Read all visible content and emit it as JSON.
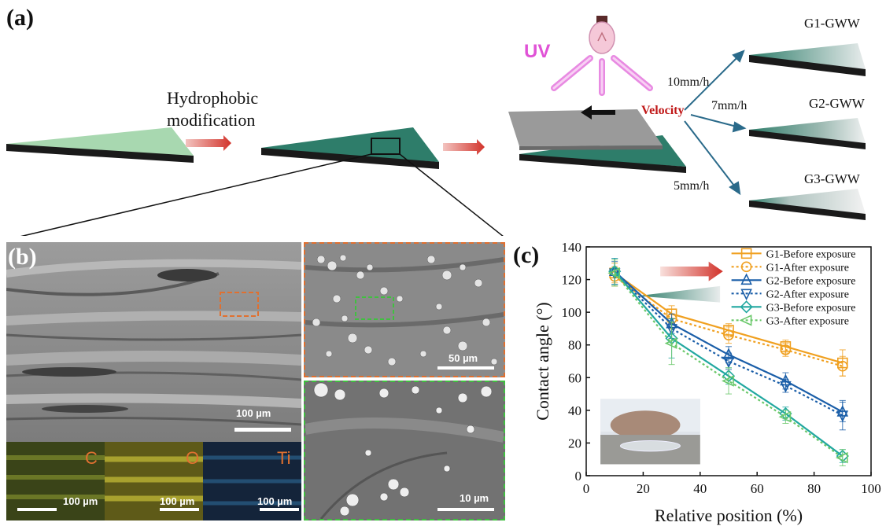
{
  "panel_a": {
    "label": "(a)",
    "step1_line1": "Hydrophobic",
    "step1_line2": "modification",
    "uv_label": "UV",
    "velocity_label": "Velocity",
    "rates": [
      "10mm/h",
      "7mm/h",
      "5mm/h"
    ],
    "products": [
      "G1-GWW",
      "G2-GWW",
      "G3-GWW"
    ],
    "colors": {
      "light_green": "#a8d8b0",
      "teal": "#2e7d6a",
      "arrow_red": "#d2332b",
      "uv_pink": "#e052d6",
      "arrow_blue": "#2a6a8a"
    }
  },
  "panel_b": {
    "label": "(b)",
    "scale_main": "100 µm",
    "scale_mid": "50 µm",
    "scale_zoom": "10 µm",
    "eds": [
      {
        "element": "C",
        "scale": "100 µm",
        "color": "#c8d040"
      },
      {
        "element": "O",
        "scale": "100 µm",
        "color": "#d8d030"
      },
      {
        "element": "Ti",
        "scale": "100 µm",
        "color": "#3090c8"
      }
    ]
  },
  "panel_c": {
    "label": "(c)"
  },
  "chart_data": {
    "type": "line",
    "xlabel": "Relative position (%)",
    "ylabel": "Contact angle (°)",
    "xlim": [
      0,
      100
    ],
    "ylim": [
      0,
      140
    ],
    "xticks": [
      0,
      20,
      40,
      60,
      80,
      100
    ],
    "yticks": [
      0,
      20,
      40,
      60,
      80,
      100,
      120,
      140
    ],
    "legend_position": "top-right",
    "x": [
      10,
      30,
      50,
      70,
      90
    ],
    "series": [
      {
        "name": "G1-Before exposure",
        "values": [
          124,
          99,
          89,
          79,
          69
        ],
        "errors": [
          6,
          5,
          4,
          4,
          8
        ],
        "color": "#f0a020",
        "dashed": false,
        "marker": "square"
      },
      {
        "name": "G1-After exposure",
        "values": [
          122,
          96,
          86,
          77,
          67
        ],
        "errors": [
          6,
          6,
          5,
          4,
          6
        ],
        "color": "#f0a020",
        "dashed": true,
        "marker": "circle"
      },
      {
        "name": "G2-Before exposure",
        "values": [
          125,
          93,
          74,
          58,
          39
        ],
        "errors": [
          8,
          6,
          5,
          5,
          6
        ],
        "color": "#1a5ea8",
        "dashed": false,
        "marker": "triangle-up"
      },
      {
        "name": "G2-After exposure",
        "values": [
          124,
          90,
          70,
          55,
          37
        ],
        "errors": [
          7,
          6,
          5,
          4,
          9
        ],
        "color": "#1a5ea8",
        "dashed": true,
        "marker": "triangle-down"
      },
      {
        "name": "G3-Before exposure",
        "values": [
          125,
          84,
          61,
          38,
          12
        ],
        "errors": [
          8,
          12,
          5,
          4,
          4
        ],
        "color": "#22a8a0",
        "dashed": false,
        "marker": "diamond"
      },
      {
        "name": "G3-After exposure",
        "values": [
          124,
          81,
          58,
          36,
          11
        ],
        "errors": [
          8,
          13,
          8,
          4,
          5
        ],
        "color": "#6ac86a",
        "dashed": true,
        "marker": "triangle-left"
      }
    ]
  }
}
